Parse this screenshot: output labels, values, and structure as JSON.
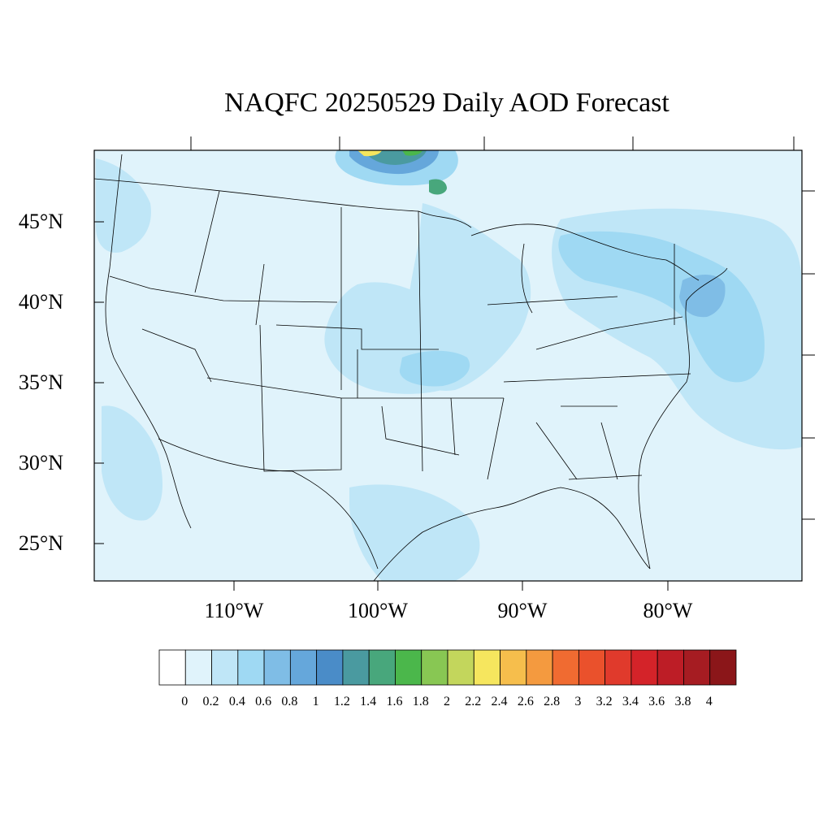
{
  "title": "NAQFC 20250529 Daily AOD Forecast",
  "lat_labels": [
    "45°N",
    "40°N",
    "35°N",
    "30°N",
    "25°N"
  ],
  "lon_labels": [
    "110°W",
    "100°W",
    "90°W",
    "80°W"
  ],
  "colorbar": {
    "colors": [
      "#ffffff",
      "#e0f3fb",
      "#bfe6f7",
      "#9fd9f3",
      "#7fbde6",
      "#65a7db",
      "#4a8cc8",
      "#4a9aa0",
      "#48a77c",
      "#4bb74b",
      "#88c753",
      "#c3d65c",
      "#f6e65e",
      "#f6be4c",
      "#f49a3f",
      "#f06b31",
      "#ea512c",
      "#e03a2c",
      "#d42329",
      "#bd1d26",
      "#a61c22",
      "#8b1619"
    ],
    "labels": [
      "0",
      "0.2",
      "0.4",
      "0.6",
      "0.8",
      "1",
      "1.2",
      "1.4",
      "1.6",
      "1.8",
      "2",
      "2.2",
      "2.4",
      "2.6",
      "2.8",
      "3",
      "3.2",
      "3.4",
      "3.6",
      "3.8",
      "4"
    ]
  },
  "colors": {
    "base_aod": "#e0f3fb",
    "aod_0_2": "#bfe6f7",
    "aod_0_4": "#9fd9f3",
    "aod_0_6": "#7fbde6",
    "aod_0_8": "#65a7db"
  }
}
